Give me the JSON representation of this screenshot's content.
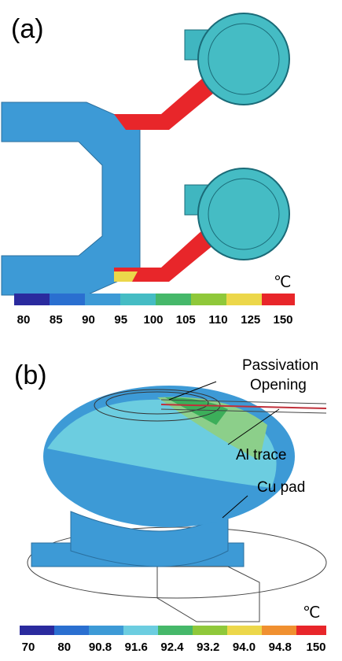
{
  "panel_a": {
    "label": "(a)",
    "unit": "℃",
    "scale_labels": [
      "80",
      "85",
      "90",
      "95",
      "100",
      "105",
      "110",
      "125",
      "150"
    ]
  },
  "panel_b": {
    "label": "(b)",
    "unit": "℃",
    "annotations": {
      "passivation": [
        "Passivation",
        "Opening"
      ],
      "al_trace": "Al trace",
      "cu_pad": "Cu pad"
    },
    "scale_labels": [
      "70",
      "80",
      "90.8",
      "91.6",
      "92.4",
      "93.2",
      "94.0",
      "94.8",
      "150"
    ]
  }
}
